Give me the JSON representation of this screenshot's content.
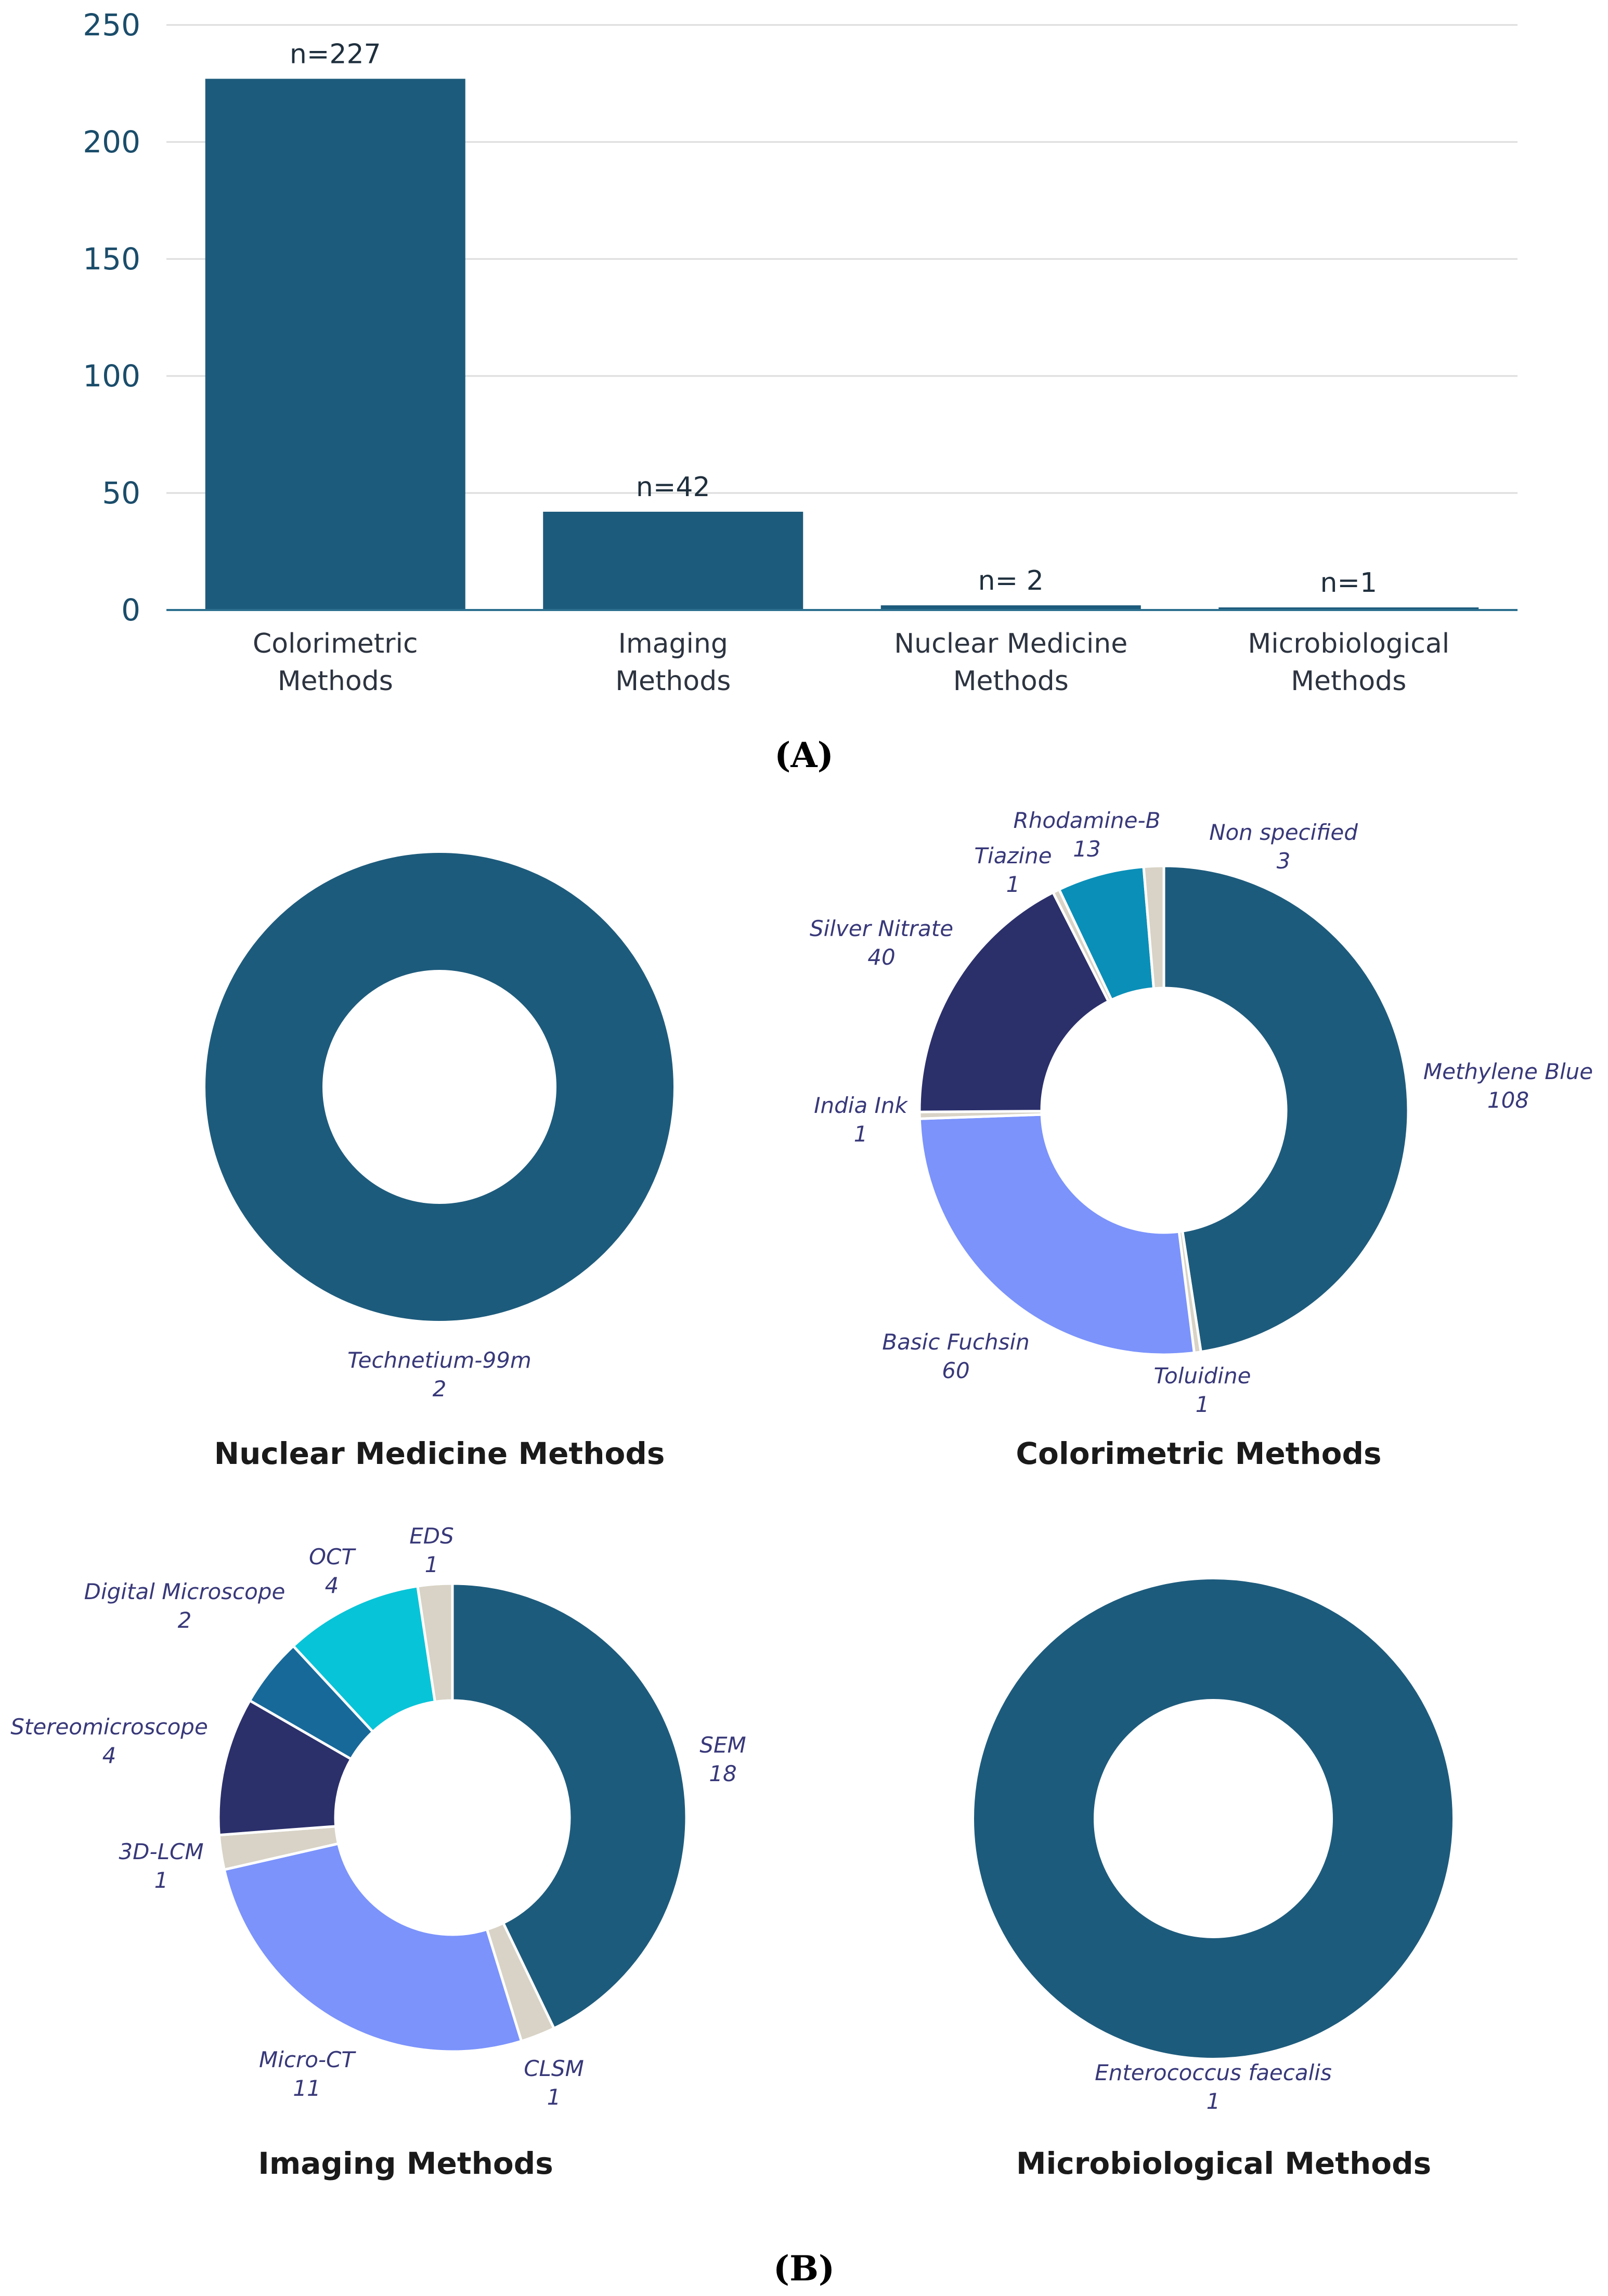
{
  "chart_data": [
    {
      "type": "bar",
      "panel": "(A)",
      "categories": [
        "Colorimetric Methods",
        "Imaging Methods",
        "Nuclear Medicine Methods",
        "Microbiological Methods"
      ],
      "category_lines": [
        [
          "Colorimetric",
          "Methods"
        ],
        [
          "Imaging",
          "Methods"
        ],
        [
          "Nuclear Medicine",
          "Methods"
        ],
        [
          "Microbiological",
          "Methods"
        ]
      ],
      "values": [
        227,
        42,
        2,
        1
      ],
      "data_labels": [
        "n=227",
        "n=42",
        "n= 2",
        "n=1"
      ],
      "yticks": [
        0,
        50,
        100,
        150,
        200,
        250
      ],
      "ylim": [
        0,
        250
      ],
      "grid": true,
      "color": "#1d5b7c"
    },
    {
      "type": "pie",
      "donut": true,
      "title": "Nuclear Medicine Methods",
      "slices": [
        {
          "label": "Technetium-99m",
          "value": 2,
          "value_label": "2",
          "color": "#1d5b7c"
        }
      ]
    },
    {
      "type": "pie",
      "donut": true,
      "title": "Colorimetric Methods",
      "slices": [
        {
          "label": "Methylene Blue",
          "value": 108,
          "value_label": "108",
          "color": "#1d5b7c"
        },
        {
          "label": "Toluidine",
          "value": 1,
          "value_label": "1",
          "color": "#d8d3c6"
        },
        {
          "label": "Basic Fuchsin",
          "value": 60,
          "value_label": "60",
          "color": "#7b93fb"
        },
        {
          "label": "India Ink",
          "value": 1,
          "value_label": "1",
          "color": "#d8d3c6"
        },
        {
          "label": "Silver Nitrate",
          "value": 40,
          "value_label": "40",
          "color": "#2b306b"
        },
        {
          "label": "Tiazine",
          "value": 1,
          "value_label": "1",
          "color": "#d8d3c6"
        },
        {
          "label": "Rhodamine-B",
          "value": 13,
          "value_label": "13",
          "color": "#0a8fb8"
        },
        {
          "label": "Non specified",
          "value": 3,
          "value_label": "3",
          "color": "#d8d3c6"
        }
      ]
    },
    {
      "type": "pie",
      "donut": true,
      "title": "Imaging Methods",
      "slices": [
        {
          "label": "SEM",
          "value": 18,
          "value_label": "18",
          "color": "#1d5b7c"
        },
        {
          "label": "CLSM",
          "value": 1,
          "value_label": "1",
          "color": "#d8d3c6"
        },
        {
          "label": "Micro-CT",
          "value": 11,
          "value_label": "11",
          "color": "#7b93fb"
        },
        {
          "label": "3D-LCM",
          "value": 1,
          "value_label": "1",
          "color": "#d8d3c6"
        },
        {
          "label": "Stereomicroscope",
          "value": 4,
          "value_label": "4",
          "color": "#2b306b"
        },
        {
          "label": "Digital Microscope",
          "value": 2,
          "value_label": "2",
          "color": "#17699a"
        },
        {
          "label": "OCT",
          "value": 4,
          "value_label": "4",
          "color": "#08c4d8"
        },
        {
          "label": "EDS",
          "value": 1,
          "value_label": "1",
          "color": "#d8d3c6"
        }
      ]
    },
    {
      "type": "pie",
      "donut": true,
      "title": "Microbiological Methods",
      "slices": [
        {
          "label": "Enterococcus faecalis",
          "value": 1,
          "value_label": "1",
          "color": "#1d5b7c"
        }
      ]
    }
  ],
  "panel_b_label": "(B)"
}
